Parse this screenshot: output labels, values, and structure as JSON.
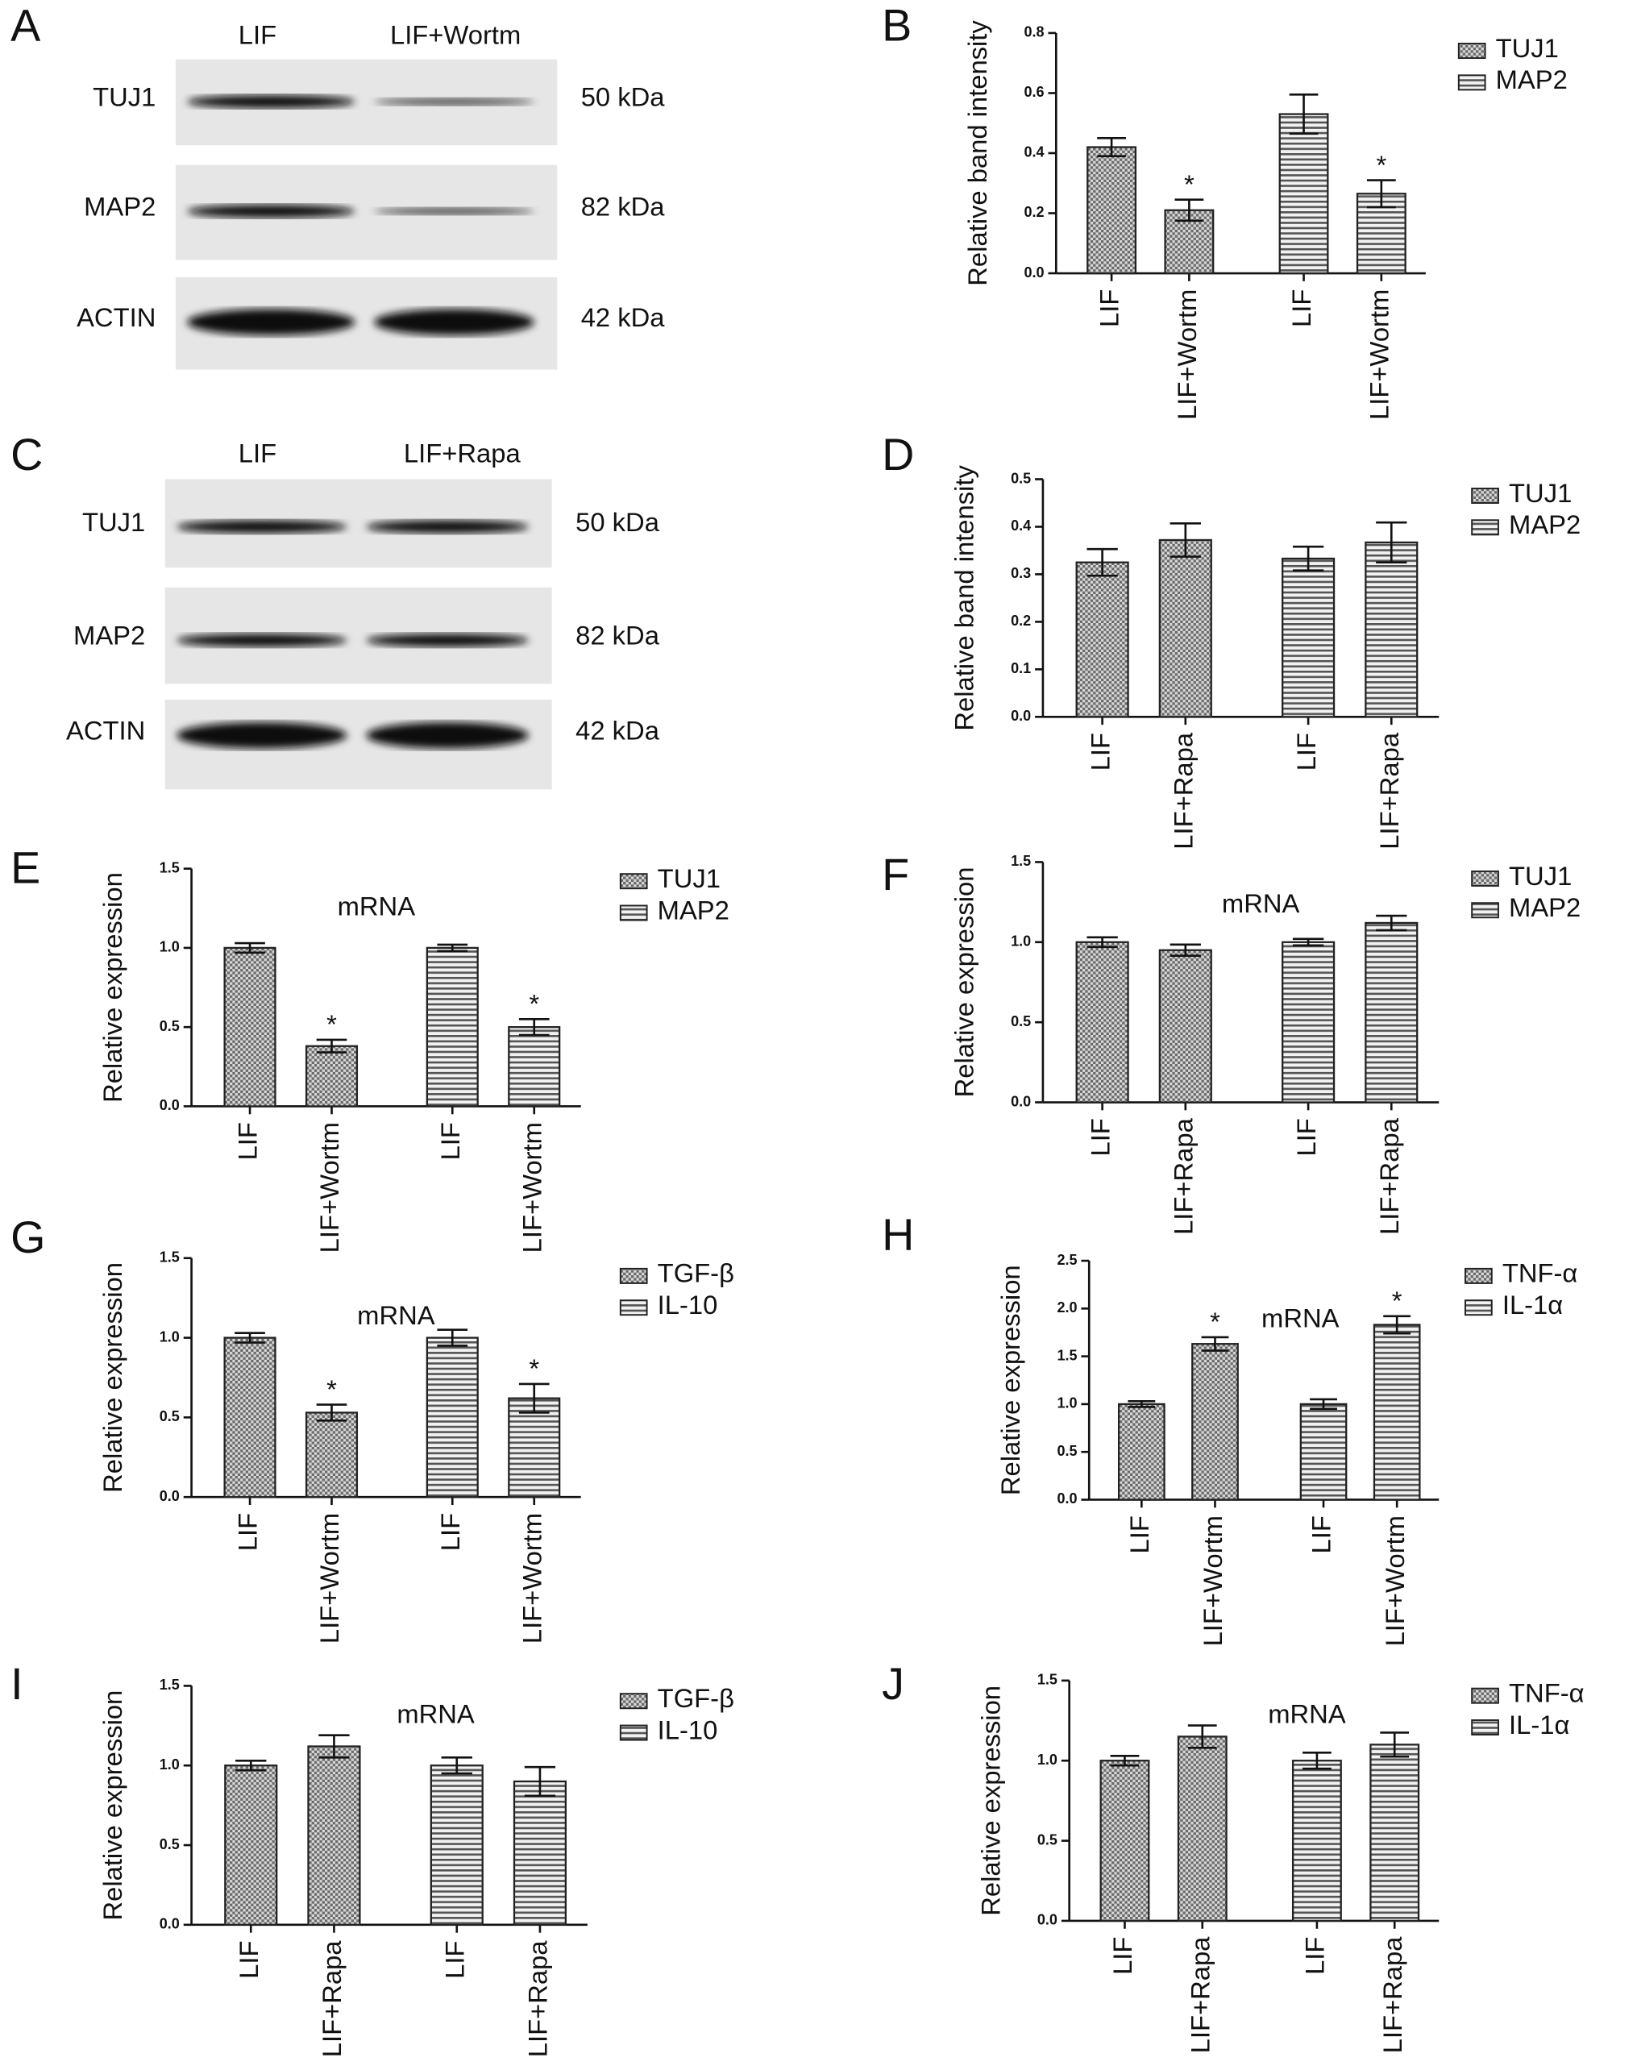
{
  "blots": [
    {
      "panel": "A",
      "columns": [
        "LIF",
        "LIF+Wortm"
      ],
      "rows": [
        {
          "label": "TUJ1",
          "size": "50 kDa"
        },
        {
          "label": "MAP2",
          "size": "82 kDa"
        },
        {
          "label": "ACTIN",
          "size": "42 kDa"
        }
      ]
    },
    {
      "panel": "C",
      "columns": [
        "LIF",
        "LIF+Rapa"
      ],
      "rows": [
        {
          "label": "TUJ1",
          "size": "50 kDa"
        },
        {
          "label": "MAP2",
          "size": "82 kDa"
        },
        {
          "label": "ACTIN",
          "size": "42 kDa"
        }
      ]
    }
  ],
  "chart_data": [
    {
      "type": "bar",
      "panel": "B",
      "ylabel": "Relative band intensity",
      "categories": [
        "LIF",
        "LIF+Wortm",
        "LIF",
        "LIF+Wortm"
      ],
      "series": [
        {
          "name": "TUJ1",
          "color": "#777777",
          "hatch": "crosshatch",
          "values": [
            0.42,
            0.21,
            null,
            null
          ],
          "errors": [
            0.03,
            0.035,
            null,
            null
          ]
        },
        {
          "name": "MAP2",
          "color": "#777777",
          "hatch": "horizontal",
          "values": [
            null,
            null,
            0.53,
            0.265
          ],
          "errors": [
            null,
            null,
            0.065,
            0.045
          ]
        }
      ],
      "stars": [
        {
          "index": 1,
          "text": "*"
        },
        {
          "index": 3,
          "text": "*"
        }
      ],
      "ylim": [
        0,
        0.8
      ],
      "yticks": [
        {
          "value": 0,
          "label": "0.0"
        },
        0.2,
        0.4,
        0.6,
        0.8
      ]
    },
    {
      "type": "bar",
      "panel": "D",
      "ylabel": "Relative band intensity",
      "categories": [
        "LIF",
        "LIF+Rapa",
        "LIF",
        "LIF+Rapa"
      ],
      "series": [
        {
          "name": "TUJ1",
          "color": "#777777",
          "hatch": "crosshatch",
          "values": [
            0.325,
            0.372,
            null,
            null
          ],
          "errors": [
            0.028,
            0.035,
            null,
            null
          ]
        },
        {
          "name": "MAP2",
          "color": "#777777",
          "hatch": "horizontal",
          "values": [
            null,
            null,
            0.333,
            0.367
          ],
          "errors": [
            null,
            null,
            0.025,
            0.042
          ]
        }
      ],
      "stars": [],
      "ylim": [
        0,
        0.5
      ],
      "yticks": [
        {
          "value": 0,
          "label": "0.0"
        },
        0.1,
        0.2,
        0.3,
        0.4,
        0.5
      ]
    },
    {
      "type": "bar",
      "panel": "E",
      "ylabel": "Relative expression",
      "annotation": "mRNA",
      "categories": [
        "LIF",
        "LIF+Wortm",
        "LIF",
        "LIF+Wortm"
      ],
      "series": [
        {
          "name": "TUJ1",
          "color": "#777777",
          "hatch": "crosshatch",
          "values": [
            1.0,
            0.38,
            null,
            null
          ],
          "errors": [
            0.03,
            0.04,
            null,
            null
          ]
        },
        {
          "name": "MAP2",
          "color": "#777777",
          "hatch": "horizontal",
          "values": [
            null,
            null,
            1.0,
            0.5
          ],
          "errors": [
            null,
            null,
            0.02,
            0.05
          ]
        }
      ],
      "stars": [
        {
          "index": 1,
          "text": "*"
        },
        {
          "index": 3,
          "text": "*"
        }
      ],
      "ylim": [
        0,
        1.5
      ],
      "yticks": [
        {
          "value": 0,
          "label": "0.0"
        },
        0.5,
        {
          "value": 1,
          "label": "1.0"
        },
        1.5
      ]
    },
    {
      "type": "bar",
      "panel": "F",
      "ylabel": "Relative expression",
      "annotation": "mRNA",
      "categories": [
        "LIF",
        "LIF+Rapa",
        "LIF",
        "LIF+Rapa"
      ],
      "series": [
        {
          "name": "TUJ1",
          "color": "#777777",
          "hatch": "crosshatch",
          "values": [
            1.0,
            0.95,
            null,
            null
          ],
          "errors": [
            0.03,
            0.035,
            null,
            null
          ]
        },
        {
          "name": "MAP2",
          "color": "#777777",
          "hatch": "horizontal",
          "values": [
            null,
            null,
            1.0,
            1.12
          ],
          "errors": [
            null,
            null,
            0.02,
            0.045
          ]
        }
      ],
      "stars": [],
      "ylim": [
        0,
        1.5
      ],
      "yticks": [
        {
          "value": 0,
          "label": "0.0"
        },
        0.5,
        {
          "value": 1,
          "label": "1.0"
        },
        1.5
      ]
    },
    {
      "type": "bar",
      "panel": "G",
      "ylabel": "Relative expression",
      "annotation": "mRNA",
      "categories": [
        "LIF",
        "LIF+Wortm",
        "LIF",
        "LIF+Wortm"
      ],
      "series": [
        {
          "name": "TGF-β",
          "color": "#777777",
          "hatch": "crosshatch",
          "values": [
            1.0,
            0.53,
            null,
            null
          ],
          "errors": [
            0.03,
            0.05,
            null,
            null
          ]
        },
        {
          "name": "IL-10",
          "color": "#777777",
          "hatch": "horizontal",
          "values": [
            null,
            null,
            1.0,
            0.62
          ],
          "errors": [
            null,
            null,
            0.05,
            0.09
          ]
        }
      ],
      "stars": [
        {
          "index": 1,
          "text": "*"
        },
        {
          "index": 3,
          "text": "*"
        }
      ],
      "ylim": [
        0,
        1.5
      ],
      "yticks": [
        {
          "value": 0,
          "label": "0.0"
        },
        0.5,
        {
          "value": 1,
          "label": "1.0"
        },
        1.5
      ]
    },
    {
      "type": "bar",
      "panel": "H",
      "ylabel": "Relative expression",
      "annotation": "mRNA",
      "categories": [
        "LIF",
        "LIF+Wortm",
        "LIF",
        "LIF+Wortm"
      ],
      "series": [
        {
          "name": "TNF-α",
          "color": "#777777",
          "hatch": "crosshatch",
          "values": [
            1.0,
            1.63,
            null,
            null
          ],
          "errors": [
            0.03,
            0.07,
            null,
            null
          ]
        },
        {
          "name": "IL-1α",
          "color": "#777777",
          "hatch": "horizontal",
          "values": [
            null,
            null,
            1.0,
            1.83
          ],
          "errors": [
            null,
            null,
            0.05,
            0.09
          ]
        }
      ],
      "stars": [
        {
          "index": 1,
          "text": "*"
        },
        {
          "index": 3,
          "text": "*"
        }
      ],
      "ylim": [
        0,
        2.5
      ],
      "yticks": [
        {
          "value": 0,
          "label": "0.0"
        },
        0.5,
        {
          "value": 1,
          "label": "1.0"
        },
        1.5,
        {
          "value": 2,
          "label": "2.0"
        },
        2.5
      ]
    },
    {
      "type": "bar",
      "panel": "I",
      "ylabel": "Relative expression",
      "annotation": "mRNA",
      "categories": [
        "LIF",
        "LIF+Rapa",
        "LIF",
        "LIF+Rapa"
      ],
      "series": [
        {
          "name": "TGF-β",
          "color": "#777777",
          "hatch": "crosshatch",
          "values": [
            1.0,
            1.12,
            null,
            null
          ],
          "errors": [
            0.03,
            0.07,
            null,
            null
          ]
        },
        {
          "name": "IL-10",
          "color": "#777777",
          "hatch": "horizontal",
          "values": [
            null,
            null,
            1.0,
            0.9
          ],
          "errors": [
            null,
            null,
            0.05,
            0.09
          ]
        }
      ],
      "stars": [],
      "ylim": [
        0,
        1.5
      ],
      "yticks": [
        {
          "value": 0,
          "label": "0.0"
        },
        0.5,
        {
          "value": 1,
          "label": "1.0"
        },
        1.5
      ]
    },
    {
      "type": "bar",
      "panel": "J",
      "ylabel": "Relative expression",
      "annotation": "mRNA",
      "categories": [
        "LIF",
        "LIF+Rapa",
        "LIF",
        "LIF+Rapa"
      ],
      "series": [
        {
          "name": "TNF-α",
          "color": "#777777",
          "hatch": "crosshatch",
          "values": [
            1.0,
            1.15,
            null,
            null
          ],
          "errors": [
            0.03,
            0.07,
            null,
            null
          ]
        },
        {
          "name": "IL-1α",
          "color": "#777777",
          "hatch": "horizontal",
          "values": [
            null,
            null,
            1.0,
            1.1
          ],
          "errors": [
            null,
            null,
            0.05,
            0.075
          ]
        }
      ],
      "stars": [],
      "ylim": [
        0,
        1.5
      ],
      "yticks": [
        {
          "value": 0,
          "label": "0.0"
        },
        0.5,
        {
          "value": 1,
          "label": "1.0"
        },
        1.5
      ]
    }
  ]
}
